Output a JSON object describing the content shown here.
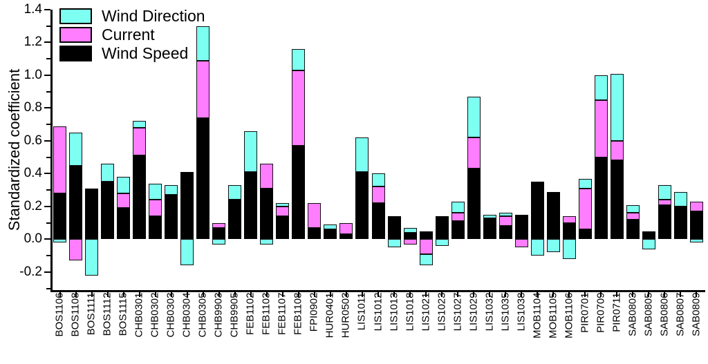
{
  "chart_data": {
    "type": "bar",
    "stacked": true,
    "title": "",
    "xlabel": "",
    "ylabel": "Standardized coefficient",
    "ylim": [
      -0.31,
      1.4
    ],
    "grid": false,
    "legend_position": "top-left-inside",
    "legend": [
      "Wind Direction",
      "Current",
      "Wind Speed"
    ],
    "colors": {
      "wind_direction": "#7dfff1",
      "current": "#ff7dff",
      "wind_speed": "#000000"
    },
    "y_major_ticks": [
      "1.4",
      "1.2",
      "1.0",
      "0.8",
      "0.6",
      "0.4",
      "0.2",
      "0.0",
      "-0.2"
    ],
    "y_minor_ticks": [
      1.3,
      1.1,
      0.9,
      0.7,
      0.5,
      0.3,
      0.1,
      -0.1,
      -0.3
    ],
    "categories": [
      "BOS1106",
      "BOS1108",
      "BOS1111",
      "BOS1112",
      "BOS1115",
      "CHB0301",
      "CHB0302",
      "CHB0303",
      "CHB0304",
      "CHB0305",
      "CHB9903",
      "CHB9905",
      "FEB1102",
      "FEB1103",
      "FEB1107",
      "FEB1108",
      "FPI0902",
      "HUR0401",
      "HUR0503",
      "LIS1011",
      "LIS1012",
      "LIS1013",
      "LIS1018",
      "LIS1021",
      "LIS1023",
      "LIS1027",
      "LIS1029",
      "LIS1032",
      "LIS1035",
      "LIS1038",
      "MOB1104",
      "MOB1105",
      "MOB1106",
      "PIR0701",
      "PIR0709",
      "PIR0711",
      "SAB0803",
      "SAB0805",
      "SAB0806",
      "SAB0807",
      "SAB0809"
    ],
    "series": [
      {
        "name": "Wind Speed",
        "key": "wind_speed",
        "values": [
          0.28,
          0.45,
          0.31,
          0.35,
          0.19,
          0.51,
          0.14,
          0.27,
          0.41,
          0.74,
          0.07,
          0.24,
          0.41,
          0.31,
          0.14,
          0.57,
          0.07,
          0.06,
          0.03,
          0.41,
          0.22,
          0.14,
          0.04,
          0.05,
          0.14,
          0.11,
          0.43,
          0.13,
          0.08,
          0.15,
          0.35,
          0.29,
          0.1,
          0.06,
          0.5,
          0.48,
          0.12,
          0.05,
          0.21,
          0.2,
          0.17
        ],
        "neg": [
          0,
          0,
          0,
          0,
          0,
          0,
          0,
          0,
          0,
          0,
          0,
          0,
          0,
          0,
          0,
          0,
          0,
          0,
          0,
          0,
          0,
          0,
          0,
          0,
          0,
          0,
          0,
          0,
          0,
          0,
          0,
          0,
          0,
          0,
          0,
          0,
          0,
          0,
          0,
          0,
          0
        ]
      },
      {
        "name": "Current",
        "key": "current",
        "values": [
          0.41,
          0,
          0,
          0,
          0.09,
          0.17,
          0.1,
          0,
          0,
          0.35,
          0.03,
          0,
          0,
          0.15,
          0.06,
          0.46,
          0.15,
          0,
          0.07,
          0,
          0.1,
          0,
          0,
          0,
          0,
          0.05,
          0.19,
          0,
          0.06,
          0,
          0,
          0,
          0.04,
          0.25,
          0.35,
          0.12,
          0.04,
          0,
          0.03,
          0,
          0.06
        ],
        "neg": [
          0,
          -0.13,
          0,
          0,
          0,
          0,
          0,
          0,
          0,
          0,
          0,
          0,
          0,
          0,
          0,
          0,
          0,
          0,
          0,
          0,
          0,
          0,
          -0.03,
          -0.09,
          0,
          0,
          0,
          0,
          0,
          -0.05,
          0,
          0,
          0,
          0,
          0,
          0,
          0,
          0,
          0,
          0,
          0
        ]
      },
      {
        "name": "Wind Direction",
        "key": "wind_direction",
        "values": [
          0,
          0.2,
          0,
          0.11,
          0.1,
          0.04,
          0.1,
          0.06,
          0,
          0.21,
          0,
          0.09,
          0.25,
          0,
          0.02,
          0.13,
          0,
          0.03,
          0,
          0.21,
          0.08,
          0,
          0.03,
          0,
          0,
          0.07,
          0.25,
          0.02,
          0.02,
          0,
          0,
          0,
          0,
          0.06,
          0.15,
          0.41,
          0.05,
          0,
          0.09,
          0.09,
          0
        ],
        "neg": [
          -0.02,
          0,
          -0.22,
          0,
          0,
          0,
          0,
          0,
          -0.16,
          0,
          -0.03,
          0,
          0,
          -0.03,
          0,
          0,
          0,
          0,
          0,
          0,
          0,
          -0.05,
          0,
          -0.07,
          -0.04,
          0,
          0,
          0,
          0,
          0,
          -0.1,
          -0.08,
          -0.12,
          0,
          0,
          0,
          0,
          -0.06,
          0,
          0,
          -0.02
        ]
      }
    ]
  }
}
